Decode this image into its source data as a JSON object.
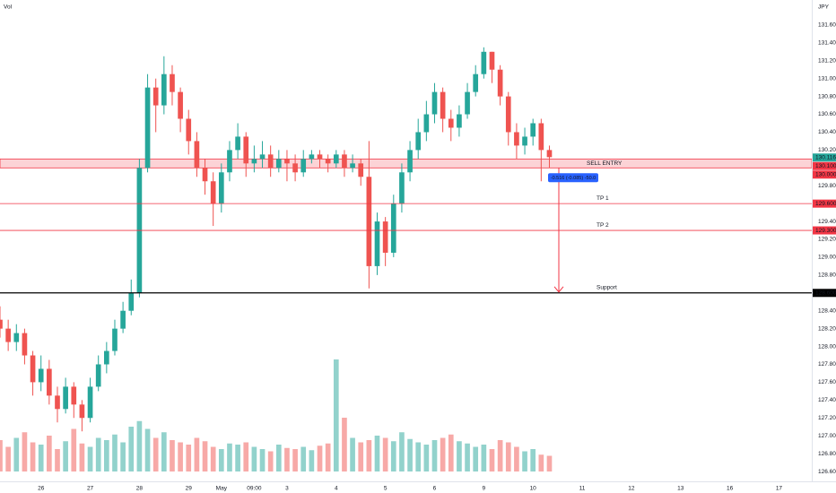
{
  "chart_data": {
    "type": "candlestick",
    "pane_label": "Vol",
    "y_axis_title": "JPY",
    "up_color": "#26a69a",
    "down_color": "#ef5350",
    "x": [
      -5,
      -4,
      -3,
      -2,
      -1,
      0,
      1,
      2,
      3,
      4,
      5,
      6,
      7,
      8,
      9,
      10,
      11,
      12,
      13,
      14,
      15,
      16,
      17,
      18,
      19,
      20,
      21,
      22,
      23,
      24,
      25,
      26,
      27,
      28,
      29,
      30,
      31,
      32,
      33,
      34,
      35,
      36,
      37,
      38,
      39,
      40,
      41,
      42,
      43,
      44,
      45,
      46,
      47,
      48,
      49,
      50,
      51,
      52,
      53,
      54,
      55,
      56,
      57,
      58,
      59,
      60,
      61,
      62
    ],
    "open": [
      128.3,
      128.2,
      128.05,
      128.15,
      127.9,
      127.6,
      127.75,
      127.45,
      127.3,
      127.55,
      127.35,
      127.2,
      127.55,
      127.8,
      127.95,
      128.2,
      128.4,
      128.6,
      130.0,
      130.9,
      130.7,
      131.05,
      130.85,
      130.55,
      130.3,
      130.0,
      129.85,
      129.6,
      129.95,
      130.2,
      130.35,
      130.05,
      130.1,
      130.15,
      130.0,
      130.1,
      130.05,
      129.95,
      130.1,
      130.15,
      130.1,
      130.05,
      130.15,
      130.0,
      130.05,
      129.9,
      128.9,
      129.4,
      129.05,
      129.6,
      129.95,
      130.2,
      130.4,
      130.6,
      130.85,
      130.55,
      130.45,
      130.6,
      130.85,
      131.05,
      131.3,
      131.1,
      130.8,
      130.4,
      130.25,
      130.35,
      130.5,
      130.2
    ],
    "high": [
      128.45,
      128.3,
      128.25,
      128.2,
      127.95,
      127.9,
      127.85,
      127.55,
      127.65,
      127.6,
      127.4,
      127.65,
      127.9,
      128.05,
      128.3,
      128.5,
      128.75,
      130.1,
      131.05,
      131.0,
      131.25,
      131.15,
      130.9,
      130.65,
      130.4,
      130.1,
      129.95,
      130.05,
      130.3,
      130.5,
      130.4,
      130.25,
      130.3,
      130.25,
      130.2,
      130.2,
      130.15,
      130.2,
      130.2,
      130.2,
      130.15,
      130.2,
      130.2,
      130.15,
      130.1,
      130.3,
      129.5,
      129.45,
      129.7,
      130.05,
      130.3,
      130.55,
      130.75,
      130.95,
      130.9,
      130.65,
      130.7,
      130.95,
      131.15,
      131.35,
      131.3,
      131.15,
      130.85,
      130.5,
      130.45,
      130.55,
      130.55,
      130.25
    ],
    "low": [
      128.1,
      127.95,
      127.95,
      127.8,
      127.45,
      127.5,
      127.35,
      127.15,
      127.25,
      127.2,
      127.05,
      127.15,
      127.5,
      127.7,
      127.9,
      128.15,
      128.35,
      128.55,
      129.95,
      130.4,
      130.6,
      130.7,
      130.4,
      130.15,
      129.9,
      129.7,
      129.35,
      129.5,
      129.85,
      130.1,
      129.9,
      129.95,
      130.0,
      129.9,
      129.95,
      129.85,
      129.85,
      129.9,
      130.05,
      130.0,
      129.95,
      130.0,
      129.9,
      129.95,
      129.8,
      128.65,
      128.8,
      128.9,
      129.0,
      129.5,
      129.85,
      130.1,
      130.3,
      130.5,
      130.4,
      130.3,
      130.35,
      130.55,
      130.8,
      131.0,
      130.95,
      130.7,
      130.25,
      130.1,
      130.15,
      130.25,
      129.85,
      130.0
    ],
    "close": [
      128.2,
      128.05,
      128.15,
      127.9,
      127.6,
      127.75,
      127.45,
      127.3,
      127.55,
      127.35,
      127.2,
      127.55,
      127.8,
      127.95,
      128.2,
      128.4,
      128.6,
      130.0,
      130.9,
      130.7,
      131.05,
      130.85,
      130.55,
      130.3,
      130.0,
      129.85,
      129.6,
      129.95,
      130.2,
      130.35,
      130.05,
      130.1,
      130.15,
      130.0,
      130.1,
      130.05,
      129.95,
      130.1,
      130.15,
      130.1,
      130.05,
      130.15,
      130.0,
      130.05,
      129.9,
      128.9,
      129.4,
      129.05,
      129.6,
      129.95,
      130.2,
      130.4,
      130.6,
      130.85,
      130.55,
      130.45,
      130.6,
      130.85,
      131.05,
      131.3,
      131.1,
      130.8,
      130.4,
      130.25,
      130.35,
      130.5,
      130.2,
      130.12
    ],
    "volume": [
      28,
      22,
      30,
      35,
      26,
      24,
      32,
      20,
      27,
      38,
      25,
      22,
      30,
      28,
      33,
      26,
      40,
      45,
      38,
      30,
      35,
      28,
      26,
      24,
      30,
      27,
      22,
      20,
      25,
      24,
      26,
      22,
      20,
      18,
      24,
      21,
      20,
      22,
      19,
      23,
      25,
      100,
      48,
      30,
      26,
      28,
      32,
      30,
      27,
      35,
      29,
      26,
      24,
      28,
      30,
      33,
      27,
      25,
      22,
      24,
      20,
      28,
      26,
      22,
      18,
      20,
      15,
      14
    ],
    "xlim": [
      -5,
      94
    ],
    "ylim": [
      126.49,
      131.88
    ],
    "xticks": [
      {
        "value": 0,
        "label": "26"
      },
      {
        "value": 6,
        "label": "27"
      },
      {
        "value": 12,
        "label": "28"
      },
      {
        "value": 18,
        "label": "29"
      },
      {
        "value": 22,
        "label": "May"
      },
      {
        "value": 26,
        "label": "09:00"
      },
      {
        "value": 30,
        "label": "3"
      },
      {
        "value": 36,
        "label": "4"
      },
      {
        "value": 42,
        "label": "5"
      },
      {
        "value": 48,
        "label": "6"
      },
      {
        "value": 54,
        "label": "9"
      },
      {
        "value": 60,
        "label": "10"
      },
      {
        "value": 66,
        "label": "11"
      },
      {
        "value": 72,
        "label": "12"
      },
      {
        "value": 78,
        "label": "13"
      },
      {
        "value": 84,
        "label": "16"
      },
      {
        "value": 90,
        "label": "17"
      }
    ],
    "yticks": [
      {
        "value": 126.6,
        "label": "126.600"
      },
      {
        "value": 126.8,
        "label": "126.800"
      },
      {
        "value": 127,
        "label": "127.000"
      },
      {
        "value": 127.2,
        "label": "127.200"
      },
      {
        "value": 127.4,
        "label": "127.400"
      },
      {
        "value": 127.6,
        "label": "127.600"
      },
      {
        "value": 127.8,
        "label": "127.800"
      },
      {
        "value": 128,
        "label": "128.000"
      },
      {
        "value": 128.2,
        "label": "128.200"
      },
      {
        "value": 128.4,
        "label": "128.400"
      },
      {
        "value": 128.6,
        "label": "128.600"
      },
      {
        "value": 128.8,
        "label": "128.800"
      },
      {
        "value": 129,
        "label": "129.000"
      },
      {
        "value": 129.2,
        "label": "129.200"
      },
      {
        "value": 129.4,
        "label": "129.400"
      },
      {
        "value": 129.6,
        "label": "129.600"
      },
      {
        "value": 129.8,
        "label": "129.800"
      },
      {
        "value": 130,
        "label": "130.000"
      },
      {
        "value": 130.2,
        "label": "130.200"
      },
      {
        "value": 130.4,
        "label": "130.400"
      },
      {
        "value": 130.6,
        "label": "130.600"
      },
      {
        "value": 130.8,
        "label": "130.800"
      },
      {
        "value": 131,
        "label": "131.000"
      },
      {
        "value": 131.2,
        "label": "131.200"
      },
      {
        "value": 131.4,
        "label": "131.400"
      },
      {
        "value": 131.6,
        "label": "131.600"
      }
    ],
    "grid": false,
    "last_price": 130.116,
    "zone": {
      "label": "SELL ENTRY",
      "color": "#f23645",
      "top": {
        "value": 130.1,
        "label": "130.100"
      },
      "bottom": {
        "value": 130,
        "label": "130.000"
      }
    },
    "levels": [
      {
        "label": "TP 1",
        "color": "#f23645",
        "price": {
          "value": 129.6,
          "label": "129.600"
        }
      },
      {
        "label": "TP 2",
        "color": "#f23645",
        "price": {
          "value": 129.3,
          "label": "129.300"
        }
      },
      {
        "label": "Support",
        "color": "#000000",
        "price": {
          "value": 128.6,
          "label": "128.600"
        }
      }
    ],
    "measure": {
      "label": "-0.516 (-0.085) -50.0",
      "color": "#2962ff"
    }
  }
}
